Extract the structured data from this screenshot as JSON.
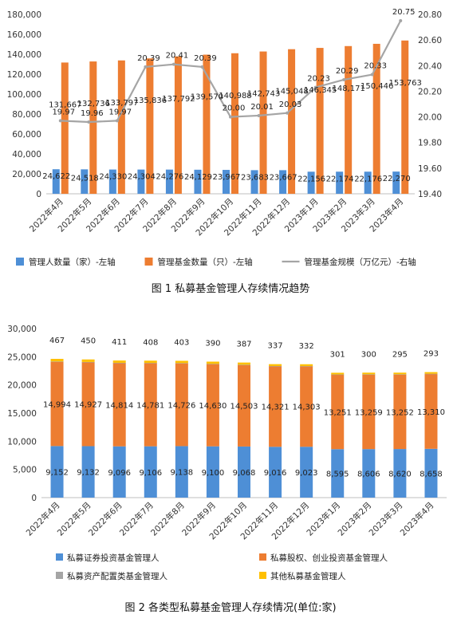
{
  "chart_data": [
    {
      "type": "bar",
      "title": "图 1  私募基金管理人存续情况趋势",
      "categories": [
        "2022年4月",
        "2022年5月",
        "2022年6月",
        "2022年7月",
        "2022年8月",
        "2022年9月",
        "2022年10月",
        "2022年11月",
        "2022年12月",
        "2023年1月",
        "2023年2月",
        "2023年3月",
        "2023年4月"
      ],
      "series": [
        {
          "name": "管理人数量（家）-左轴",
          "axis": "left",
          "kind": "bar",
          "color": "#4e8fd6",
          "values": [
            24622,
            24518,
            24330,
            24304,
            24276,
            24129,
            23967,
            23683,
            23667,
            22156,
            22174,
            22176,
            22270
          ],
          "labels": [
            "24,622",
            "24,518",
            "24,330",
            "24,304",
            "24,276",
            "24,129",
            "23,967",
            "23,683",
            "23,667",
            "22,156",
            "22,174",
            "22,176",
            "22,270"
          ]
        },
        {
          "name": "管理基金数量（只）-左轴",
          "axis": "left",
          "kind": "bar",
          "color": "#ed7d31",
          "values": [
            131667,
            132736,
            133797,
            135836,
            137792,
            139570,
            140988,
            142743,
            145048,
            146345,
            148171,
            150446,
            153763
          ],
          "labels": [
            "131,667",
            "132,736",
            "133,797",
            "135,836",
            "137,792",
            "139,570",
            "140,988",
            "142,743",
            "145,048",
            "146,345",
            "148,171",
            "150,446",
            "153,763"
          ]
        },
        {
          "name": "管理基金规模（万亿元）-右轴",
          "axis": "right",
          "kind": "line",
          "color": "#a5a5a5",
          "values": [
            19.97,
            19.96,
            19.97,
            20.39,
            20.41,
            20.39,
            20.0,
            20.01,
            20.03,
            20.23,
            20.29,
            20.33,
            20.75
          ],
          "labels": [
            "19.97",
            "19.96",
            "19.97",
            "20.39",
            "20.41",
            "20.39",
            "20.00",
            "20.01",
            "20.03",
            "20.23",
            "20.29",
            "20.33",
            "20.75"
          ]
        }
      ],
      "left_axis": {
        "min": 0,
        "max": 180000,
        "ticks": [
          "0",
          "20,000",
          "40,000",
          "60,000",
          "80,000",
          "100,000",
          "120,000",
          "140,000",
          "160,000",
          "180,000"
        ]
      },
      "right_axis": {
        "min": 19.4,
        "max": 20.8,
        "ticks": [
          "19.40",
          "19.60",
          "19.80",
          "20.00",
          "20.20",
          "20.40",
          "20.60",
          "20.80"
        ]
      },
      "legend_position": "bottom",
      "grid": false
    },
    {
      "type": "bar",
      "stacked": true,
      "title": "图 2  各类型私募基金管理人存续情况(单位:家)",
      "categories": [
        "2022年4月",
        "2022年5月",
        "2022年6月",
        "2022年7月",
        "2022年8月",
        "2022年9月",
        "2022年10月",
        "2022年11月",
        "2022年12月",
        "2023年1月",
        "2023年2月",
        "2023年3月",
        "2023年4月"
      ],
      "series": [
        {
          "name": "私募证券投资基金管理人",
          "color": "#4e8fd6",
          "values": [
            9152,
            9132,
            9096,
            9106,
            9138,
            9100,
            9068,
            9016,
            9023,
            8595,
            8606,
            8620,
            8658
          ],
          "labels": [
            "9,152",
            "9,132",
            "9,096",
            "9,106",
            "9,138",
            "9,100",
            "9,068",
            "9,016",
            "9,023",
            "8,595",
            "8,606",
            "8,620",
            "8,658"
          ]
        },
        {
          "name": "私募股权、创业投资基金管理人",
          "color": "#ed7d31",
          "values": [
            14994,
            14927,
            14814,
            14781,
            14726,
            14630,
            14503,
            14321,
            14303,
            13251,
            13259,
            13252,
            13310
          ],
          "labels": [
            "14,994",
            "14,927",
            "14,814",
            "14,781",
            "14,726",
            "14,630",
            "14,503",
            "14,321",
            "14,303",
            "13,251",
            "13,259",
            "13,252",
            "13,310"
          ]
        },
        {
          "name": "私募资产配置类基金管理人",
          "color": "#a5a5a5",
          "values": [
            9,
            9,
            9,
            9,
            9,
            9,
            9,
            9,
            9,
            9,
            9,
            9,
            9
          ],
          "labels": []
        },
        {
          "name": "其他私募基金管理人",
          "color": "#ffc000",
          "values": [
            467,
            450,
            411,
            408,
            403,
            390,
            387,
            337,
            332,
            301,
            300,
            295,
            293
          ],
          "labels": [
            "467",
            "450",
            "411",
            "408",
            "403",
            "390",
            "387",
            "337",
            "332",
            "301",
            "300",
            "295",
            "293"
          ]
        }
      ],
      "left_axis": {
        "min": 0,
        "max": 30000,
        "ticks": [
          "0",
          "5,000",
          "10,000",
          "15,000",
          "20,000",
          "25,000",
          "30,000"
        ]
      },
      "legend_position": "bottom",
      "grid": false
    }
  ]
}
